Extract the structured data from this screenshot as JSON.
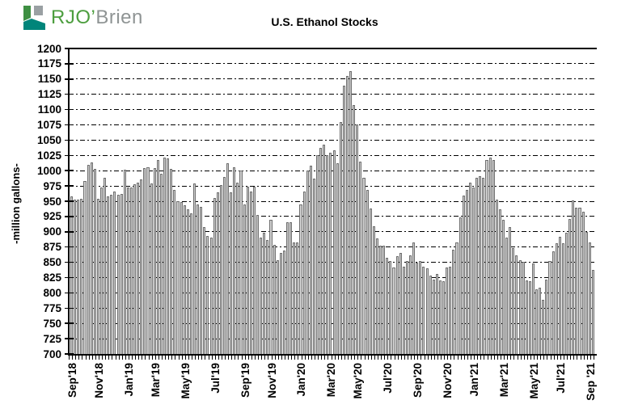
{
  "logo": {
    "text_primary": "RJO’",
    "text_secondary": "Brien",
    "colors": {
      "green": "#3e8f43",
      "teal": "#00857a",
      "gray": "#9aa0a3",
      "text_green": "#4d9e3f",
      "text_gray": "#8f9494"
    }
  },
  "chart_data": {
    "type": "bar",
    "title": "U.S. Ethanol Stocks",
    "ylabel": "-million gallons-",
    "ylim": [
      700,
      1200
    ],
    "ytick_step": 25,
    "grid": "horizontal-dashed",
    "legend": "none",
    "bar_color": "#cfcfcf",
    "bar_border": "#6f6f6f",
    "frequency": "weekly",
    "x_tick_labels": [
      {
        "label": "Sep'18",
        "week": 0
      },
      {
        "label": "Nov'18",
        "week": 8
      },
      {
        "label": "Jan'19",
        "week": 17
      },
      {
        "label": "Mar'19",
        "week": 25
      },
      {
        "label": "May'19",
        "week": 34
      },
      {
        "label": "Jul'19",
        "week": 43
      },
      {
        "label": "Sep'19",
        "week": 52
      },
      {
        "label": "Nov'19",
        "week": 60
      },
      {
        "label": "Jan'20",
        "week": 69
      },
      {
        "label": "Mar'20",
        "week": 78
      },
      {
        "label": "May'20",
        "week": 86
      },
      {
        "label": "Jul'20",
        "week": 95
      },
      {
        "label": "Sep'20",
        "week": 104
      },
      {
        "label": "Nov'20",
        "week": 113
      },
      {
        "label": "Jan'21",
        "week": 121
      },
      {
        "label": "Mar'21",
        "week": 130
      },
      {
        "label": "May'21",
        "week": 139
      },
      {
        "label": "Jul'21",
        "week": 147
      },
      {
        "label": "Sep '21",
        "week": 156
      }
    ],
    "weekly_values": [
      958,
      953,
      953,
      954,
      983,
      1010,
      1013,
      1003,
      954,
      973,
      988,
      958,
      961,
      966,
      960,
      962,
      1002,
      972,
      973,
      978,
      981,
      986,
      1004,
      1005,
      979,
      1004,
      1017,
      995,
      1022,
      1020,
      1003,
      969,
      950,
      949,
      943,
      937,
      930,
      979,
      945,
      941,
      908,
      893,
      890,
      955,
      965,
      977,
      990,
      1012,
      965,
      1005,
      980,
      1000,
      945,
      974,
      966,
      974,
      928,
      890,
      899,
      886,
      920,
      878,
      853,
      865,
      869,
      916,
      916,
      882,
      882,
      945,
      966,
      1000,
      1008,
      987,
      1025,
      1037,
      1042,
      1025,
      1030,
      1033,
      1012,
      1080,
      1139,
      1155,
      1163,
      1108,
      1076,
      1015,
      989,
      968,
      938,
      909,
      889,
      877,
      877,
      857,
      852,
      841,
      860,
      866,
      843,
      852,
      862,
      882,
      849,
      852,
      843,
      840,
      828,
      822,
      831,
      820,
      819,
      842,
      843,
      871,
      883,
      923,
      959,
      968,
      981,
      972,
      988,
      991,
      989,
      1017,
      1021,
      1018,
      952,
      937,
      920,
      890,
      908,
      873,
      862,
      853,
      851,
      821,
      819,
      848,
      806,
      808,
      788,
      822,
      852,
      868,
      881,
      892,
      881,
      899,
      921,
      951,
      940,
      939,
      933,
      900,
      882,
      838
    ]
  }
}
